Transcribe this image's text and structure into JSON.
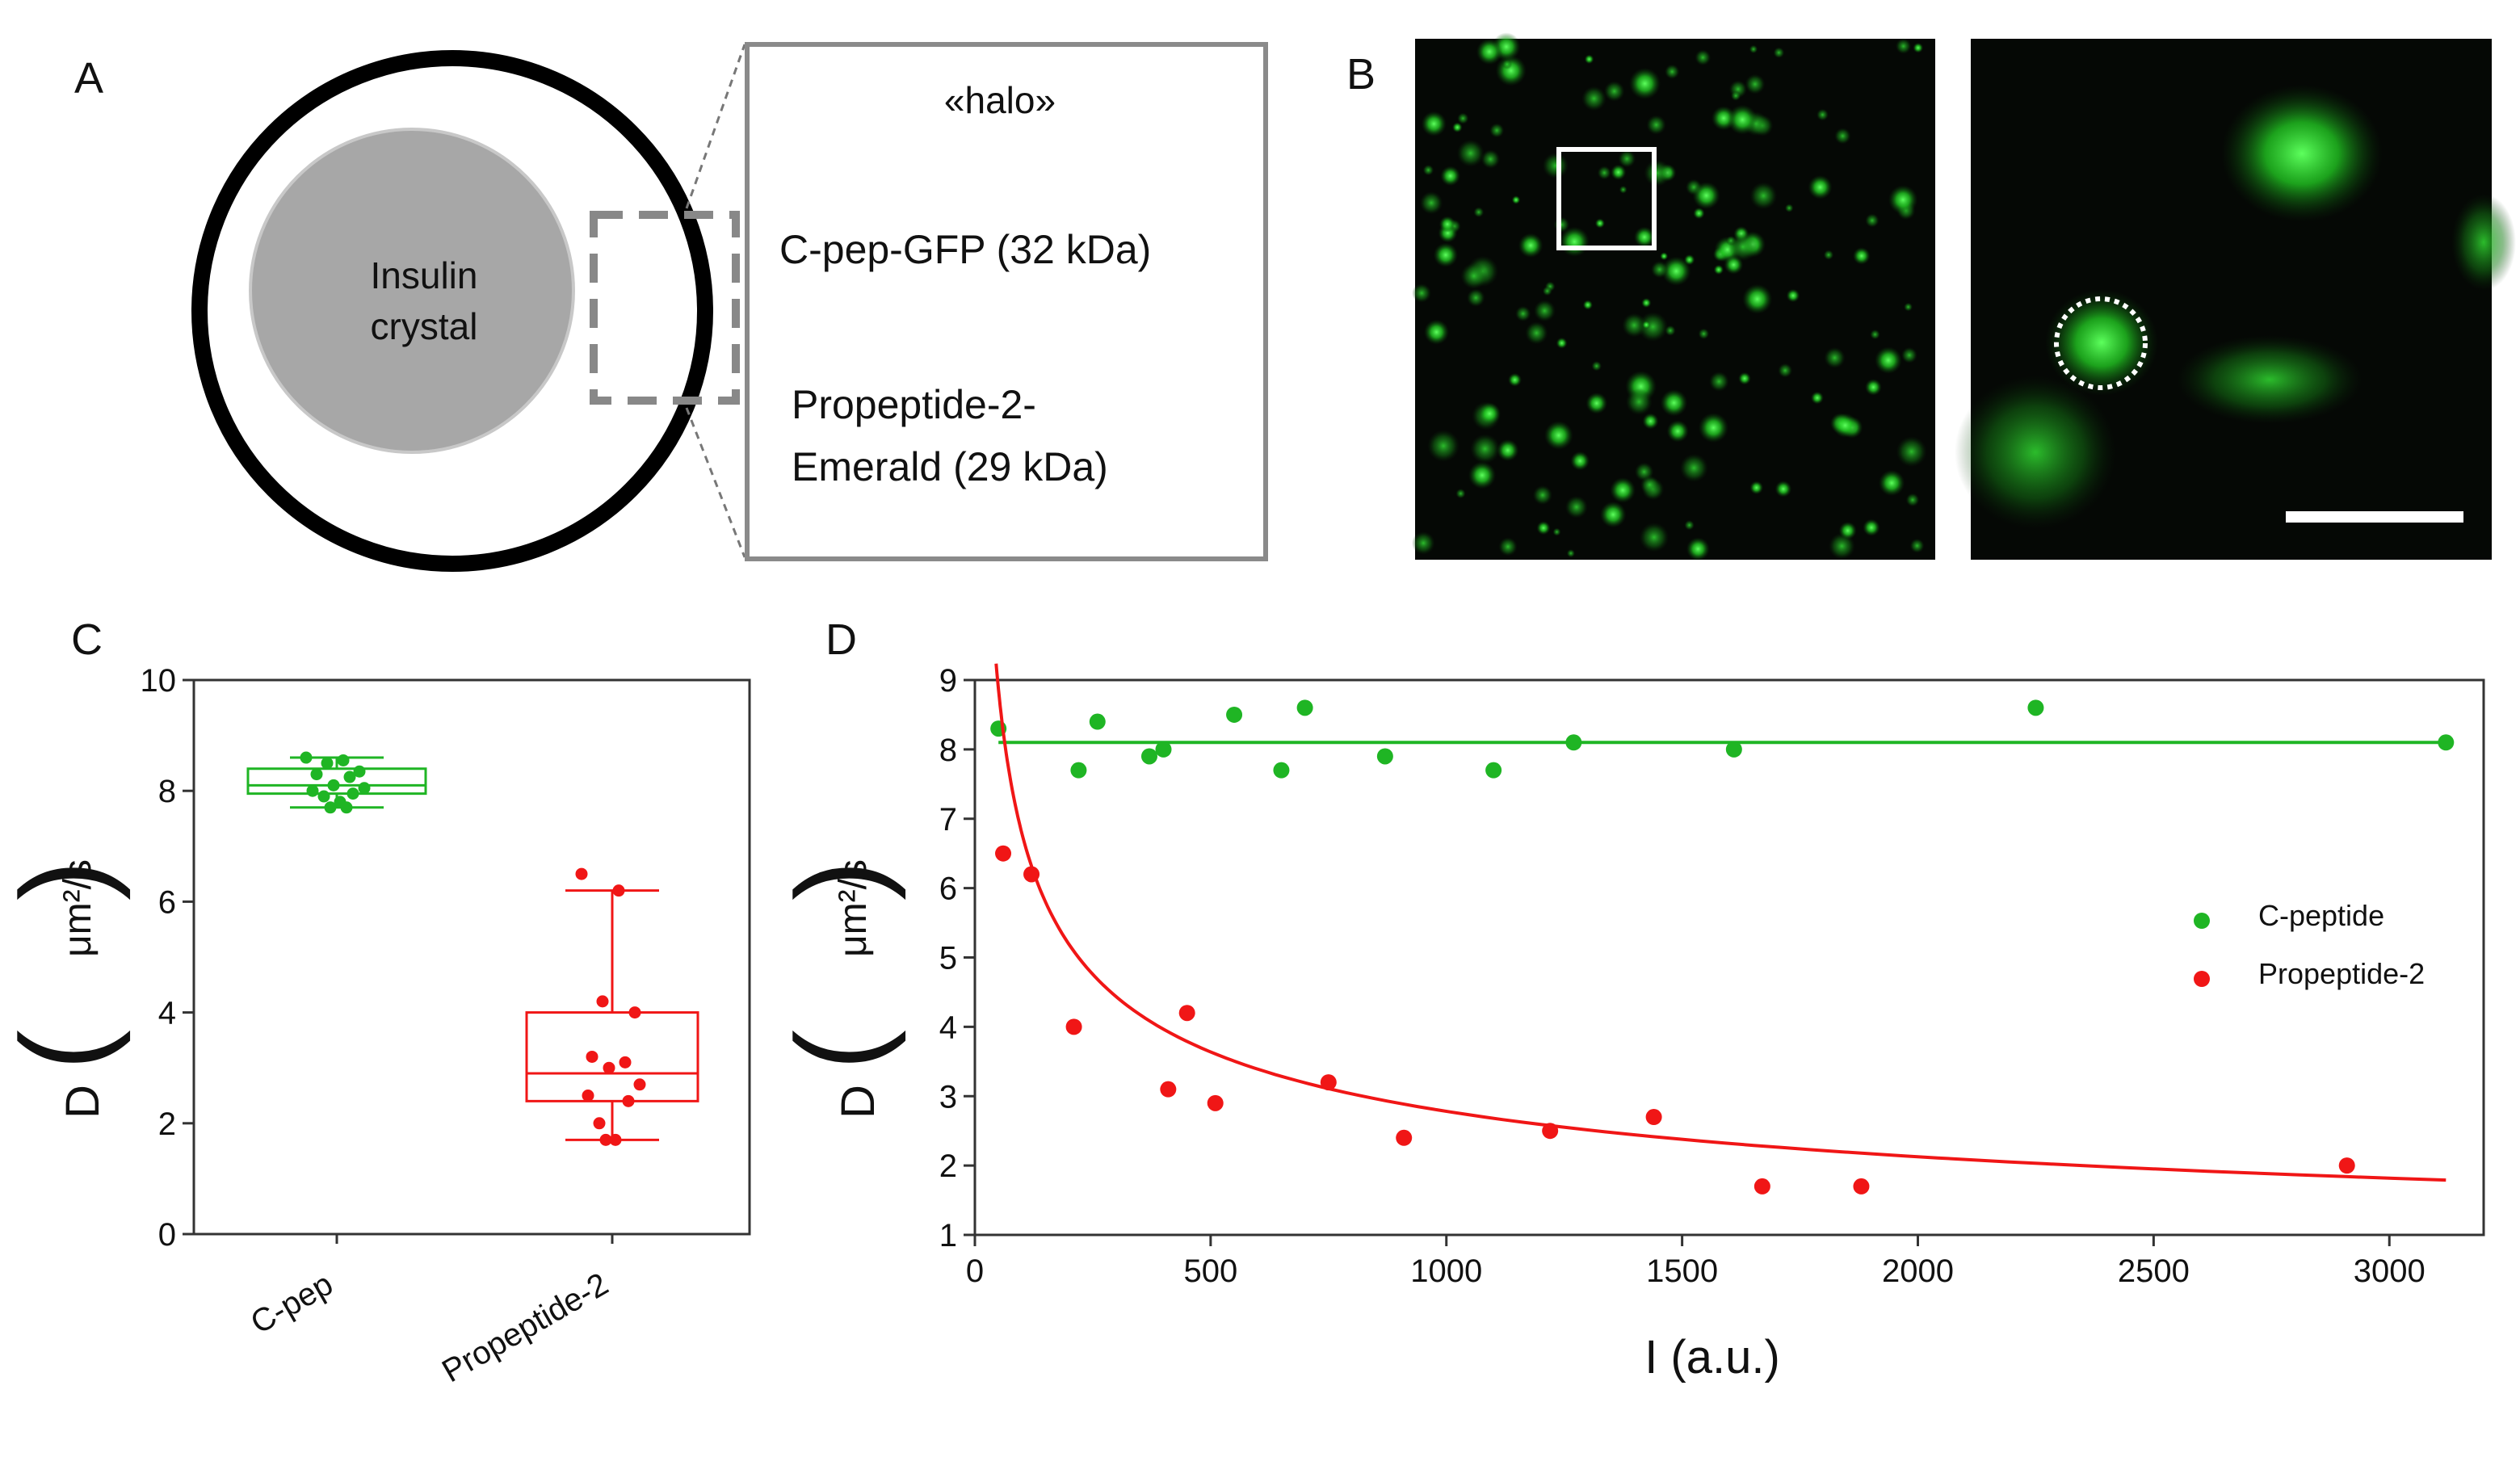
{
  "colors": {
    "green": "#1fb524",
    "red": "#f01616",
    "grey_crystal": "#a7a7a7",
    "fluor_green": "#39ff39"
  },
  "panel_a": {
    "letter": "A",
    "crystal_label_line1": "Insulin",
    "crystal_label_line2": "crystal",
    "box_title": "«halo»",
    "item1": "C-pep-GFP (32 kDa)",
    "item2_line1": "Propeptide-2-",
    "item2_line2": "Emerald (29 kDa)"
  },
  "panel_b": {
    "letter": "B",
    "image_desc_left": "fluorescence-micrograph",
    "image_desc_right": "zoomed-micrograph"
  },
  "chart_data": [
    {
      "panel": "C",
      "type": "box",
      "title": "",
      "xlabel": "",
      "ylabel": "D (μm²/s)",
      "ylabel_d": "D",
      "ylabel_units": "μm²/s",
      "ylim": [
        0,
        10
      ],
      "yticks": [
        0,
        2,
        4,
        6,
        8,
        10
      ],
      "categories": [
        "C-pep",
        "Propeptide-2"
      ],
      "boxes": [
        {
          "name": "C-pep",
          "color": "#1fb524",
          "min": 7.7,
          "q1": 7.95,
          "median": 8.1,
          "q3": 8.4,
          "max": 8.6,
          "points": [
            8.6,
            8.55,
            8.5,
            8.35,
            8.3,
            8.25,
            8.1,
            8.05,
            8.0,
            7.95,
            7.9,
            7.8,
            7.7,
            7.7
          ]
        },
        {
          "name": "Propeptide-2",
          "color": "#f01616",
          "min": 1.7,
          "q1": 2.4,
          "median": 2.9,
          "q3": 4.0,
          "max": 6.2,
          "points": [
            6.5,
            6.2,
            4.2,
            4.0,
            3.2,
            3.1,
            3.0,
            2.7,
            2.5,
            2.4,
            2.0,
            1.7,
            1.7
          ]
        }
      ]
    },
    {
      "panel": "D",
      "type": "scatter",
      "title": "",
      "xlabel": "I (a.u.)",
      "ylabel": "D (μm²/s)",
      "ylabel_d": "D",
      "ylabel_units": "μm²/s",
      "xlim": [
        0,
        3200
      ],
      "ylim": [
        1,
        9
      ],
      "xticks": [
        0,
        500,
        1000,
        1500,
        2000,
        2500,
        3000
      ],
      "yticks": [
        1,
        2,
        3,
        4,
        5,
        6,
        7,
        8,
        9
      ],
      "legend_position": "right",
      "series": [
        {
          "name": "C-peptide",
          "color": "#1fb524",
          "x": [
            50,
            220,
            260,
            370,
            400,
            550,
            650,
            700,
            870,
            1100,
            1270,
            1610,
            2250,
            3120
          ],
          "y": [
            8.3,
            7.7,
            8.4,
            7.9,
            8.0,
            8.5,
            7.7,
            8.6,
            7.9,
            7.7,
            8.1,
            8.0,
            8.6,
            8.1
          ],
          "fit": {
            "kind": "constant",
            "value": 8.1,
            "x_range": [
              50,
              3120
            ]
          }
        },
        {
          "name": "Propeptide-2",
          "color": "#f01616",
          "x": [
            60,
            120,
            210,
            410,
            450,
            510,
            750,
            910,
            1220,
            1440,
            1670,
            1880,
            2910
          ],
          "y": [
            6.5,
            6.2,
            4.0,
            3.1,
            4.2,
            2.9,
            3.2,
            2.4,
            2.5,
            2.7,
            1.7,
            1.7,
            2.0
          ],
          "fit": {
            "kind": "power",
            "a": 40.3,
            "b": -0.387,
            "x_range": [
              45,
              3120
            ]
          }
        }
      ]
    }
  ]
}
